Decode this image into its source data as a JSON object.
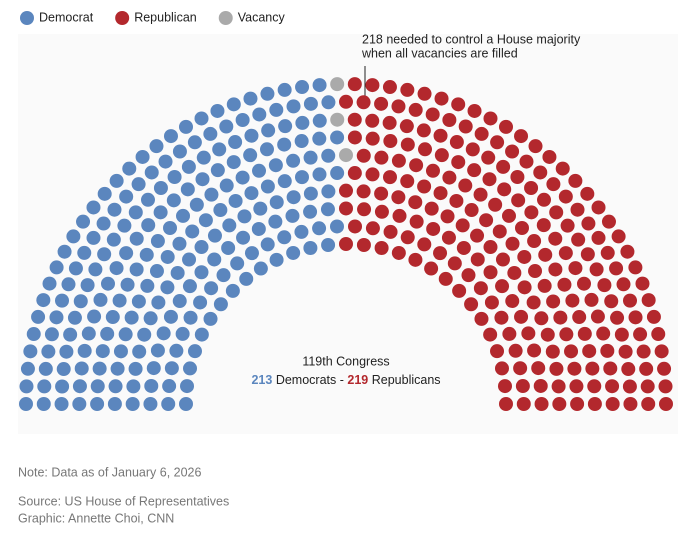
{
  "chart_data": {
    "type": "parliament",
    "series": [
      {
        "name": "Democrat",
        "color": "#5b86be",
        "value": 213
      },
      {
        "name": "Vacancy",
        "color": "#aaaaaa",
        "value": 3
      },
      {
        "name": "Republican",
        "color": "#b3282d",
        "value": 219
      }
    ],
    "legend_order": [
      0,
      2,
      1
    ],
    "annotation": [
      "218 needed to control a House majority",
      "when all vacancies are filled"
    ],
    "center_title": "119th Congress",
    "summary": {
      "democrats_label": "Democrats",
      "separator": "-",
      "republicans_label": "Republicans"
    },
    "note": "Note: Data as of January 6, 2026",
    "source": "Source: US House of Representatives",
    "credit": "Graphic: Annette Choi, CNN"
  }
}
